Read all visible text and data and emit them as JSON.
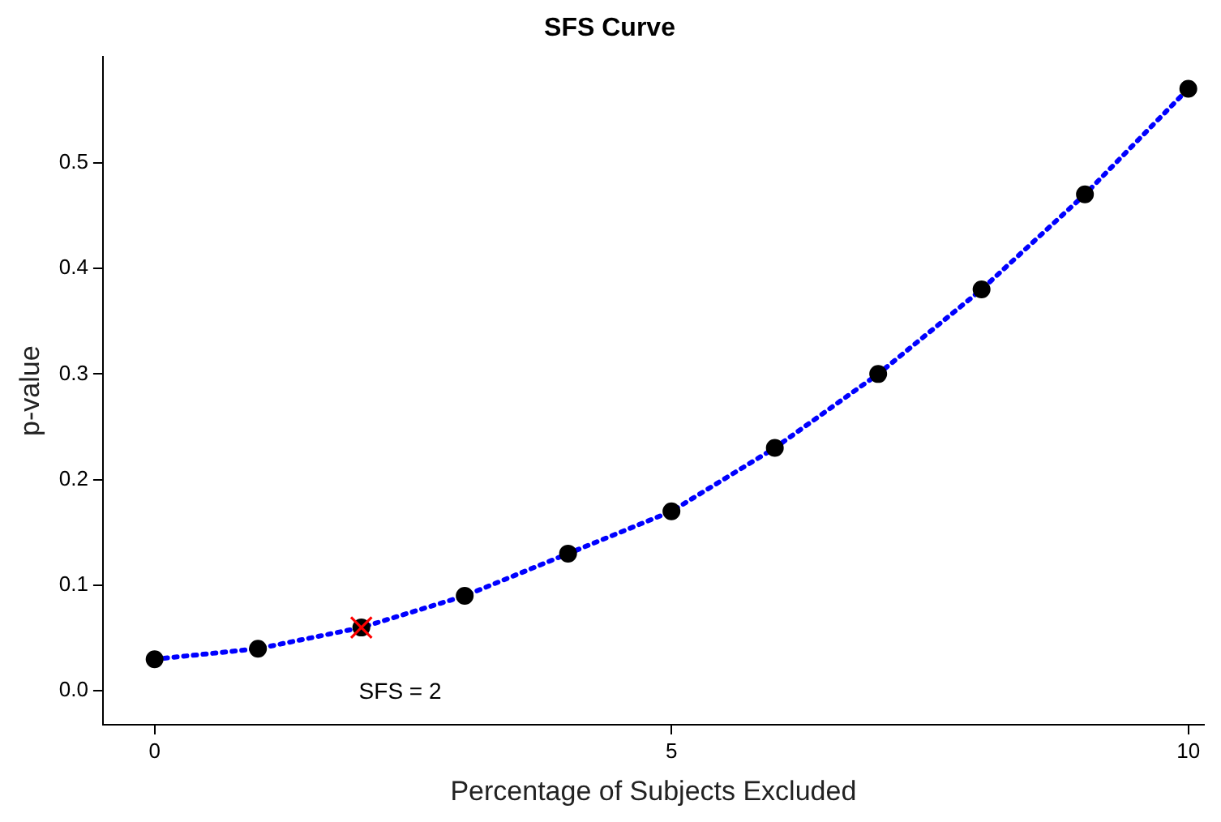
{
  "chart_data": {
    "type": "line",
    "title": "SFS Curve",
    "xlabel": "Percentage of Subjects Excluded",
    "ylabel": "p-value",
    "x": [
      0,
      1,
      2,
      3,
      4,
      5,
      6,
      7,
      8,
      9,
      10
    ],
    "series": [
      {
        "color": "#0000ff",
        "marker": "none",
        "line_style": "dotted",
        "values": [
          0.03,
          0.04,
          0.06,
          0.09,
          0.13,
          0.17,
          0.23,
          0.3,
          0.38,
          0.47,
          0.57
        ]
      },
      {
        "type": "scatter",
        "color": "#000000",
        "marker": "circle",
        "values": [
          0.03,
          0.04,
          0.06,
          0.09,
          0.13,
          0.17,
          0.23,
          0.3,
          0.38,
          0.47,
          0.57
        ]
      },
      {
        "type": "scatter",
        "color": "#ff0000",
        "marker": "cross",
        "x": [
          2
        ],
        "values": [
          0.06
        ]
      }
    ],
    "xlim": [
      -0.5,
      10.15
    ],
    "xticks": [
      0,
      5,
      10
    ],
    "ylim": [
      -0.032,
      0.6
    ],
    "yticks": [
      {
        "value": 0,
        "label": "0.0"
      },
      0.1,
      0.2,
      0.3,
      0.4,
      0.5
    ],
    "grid": false,
    "legend": false,
    "annotations": [
      "SFS = 2"
    ]
  }
}
